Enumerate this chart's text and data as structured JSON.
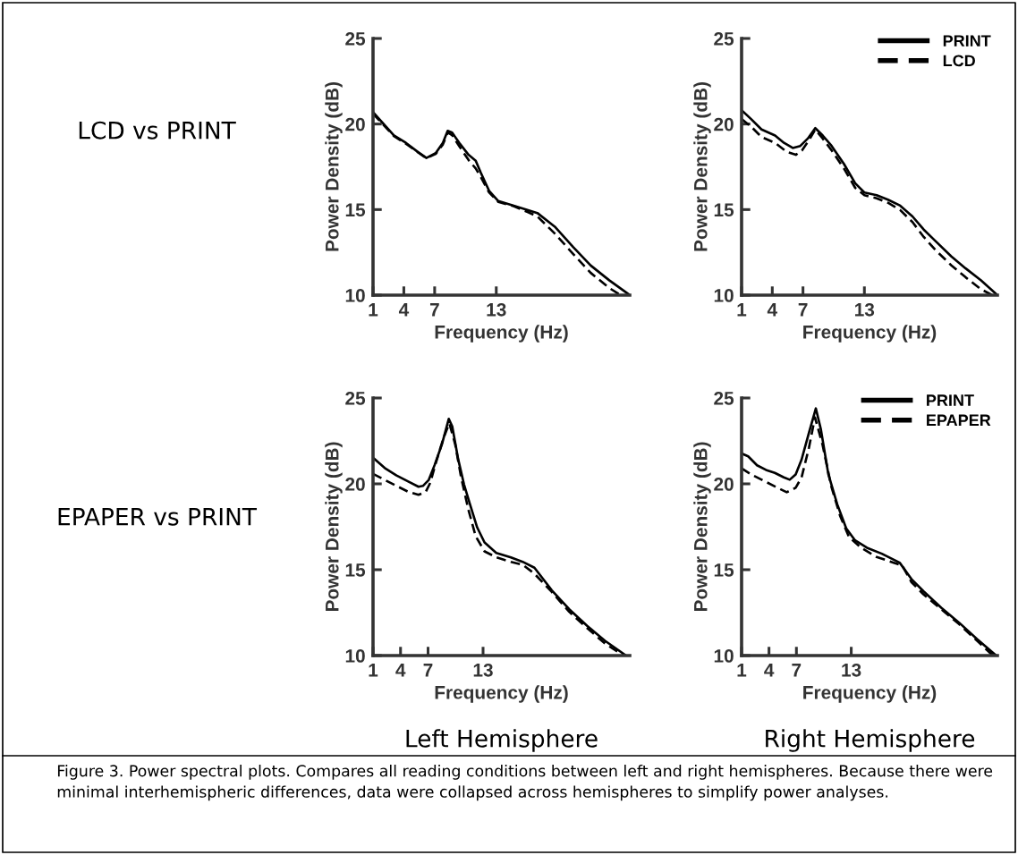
{
  "chart_data": [
    {
      "type": "line",
      "title": "LCD vs PRINT",
      "xlabel": "Frequency (Hz)",
      "ylabel": "Power Density (dB)",
      "xlim": [
        1,
        26
      ],
      "xticks": [
        1,
        4,
        7,
        13
      ],
      "ylim": [
        10,
        25
      ],
      "yticks": [
        10,
        15,
        20,
        25
      ],
      "legend": false,
      "series": [
        {
          "color": "#000000",
          "line_style": "solid",
          "x": [
            1,
            3.03,
            4.2,
            5.36,
            6.2,
            7.1,
            7.8,
            8.27,
            8.7,
            9.4,
            10.3,
            11.0,
            11.5,
            12.3,
            13.2,
            14.7,
            16.1,
            17.0,
            18.7,
            20.5,
            22.2,
            24.0,
            26.0
          ],
          "values": [
            20.69,
            19.33,
            18.9,
            18.37,
            18.02,
            18.3,
            18.9,
            19.6,
            19.5,
            18.9,
            18.2,
            17.85,
            17.15,
            16.1,
            15.5,
            15.23,
            14.97,
            14.8,
            14.0,
            12.8,
            11.73,
            10.87,
            10
          ]
        },
        {
          "color": "#000000",
          "line_style": "dashed",
          "x": [
            1,
            3.03,
            4.2,
            5.36,
            6.2,
            7.1,
            7.8,
            8.27,
            8.7,
            9.4,
            10.3,
            11.0,
            11.5,
            12.3,
            13.2,
            14.7,
            16.1,
            17.0,
            18.7,
            20.5,
            22.2,
            24.0,
            25.1
          ],
          "values": [
            20.6,
            19.3,
            18.85,
            18.35,
            18.0,
            18.25,
            18.8,
            19.5,
            19.35,
            18.7,
            17.9,
            17.4,
            16.9,
            16.0,
            15.45,
            15.2,
            14.85,
            14.6,
            13.6,
            12.4,
            11.3,
            10.42,
            10
          ]
        }
      ]
    },
    {
      "type": "line",
      "xlabel": "Frequency (Hz)",
      "ylabel": "Power Density (dB)",
      "xlim": [
        1,
        26
      ],
      "xticks": [
        1,
        4,
        7,
        13
      ],
      "ylim": [
        10,
        25
      ],
      "yticks": [
        10,
        15,
        20,
        25
      ],
      "legend": "top right",
      "series": [
        {
          "name": "PRINT",
          "color": "#000000",
          "line_style": "solid",
          "x": [
            1,
            1.93,
            2.95,
            4.27,
            5.14,
            6.0,
            6.74,
            7.47,
            8.2,
            8.93,
            9.8,
            11.0,
            12.1,
            13.0,
            14.2,
            15.3,
            16.5,
            17.7,
            18.8,
            20.0,
            21.5,
            22.9,
            24.4,
            26.0
          ],
          "values": [
            20.81,
            20.29,
            19.68,
            19.33,
            18.9,
            18.6,
            18.72,
            19.15,
            19.76,
            19.33,
            18.72,
            17.67,
            16.54,
            16.0,
            15.84,
            15.58,
            15.23,
            14.6,
            13.83,
            13.13,
            12.26,
            11.56,
            10.86,
            10
          ]
        },
        {
          "name": "LCD",
          "color": "#000000",
          "line_style": "dashed",
          "x": [
            1,
            1.93,
            2.95,
            4.27,
            5.43,
            6.3,
            6.9,
            7.6,
            8.2,
            8.93,
            9.8,
            11.0,
            12.1,
            13.0,
            14.2,
            15.3,
            16.5,
            17.7,
            18.8,
            20.0,
            21.5,
            22.9,
            24.4,
            25.5
          ],
          "values": [
            20.29,
            19.85,
            19.24,
            18.9,
            18.37,
            18.2,
            18.46,
            19.07,
            19.68,
            19.15,
            18.46,
            17.4,
            16.27,
            15.84,
            15.66,
            15.4,
            14.97,
            14.27,
            13.4,
            12.6,
            11.74,
            11.04,
            10.34,
            10
          ]
        }
      ]
    },
    {
      "type": "line",
      "title": "EPAPER vs PRINT",
      "xlabel": "Frequency (Hz)",
      "ylabel": "Power Density (dB)",
      "xlim": [
        1,
        29
      ],
      "xticks": [
        1,
        4,
        7,
        13
      ],
      "ylim": [
        10,
        25
      ],
      "yticks": [
        10,
        15,
        20,
        25
      ],
      "legend": false,
      "annotations": [
        "Left Hemisphere"
      ],
      "series": [
        {
          "color": "#000000",
          "line_style": "solid",
          "x": [
            1,
            2.28,
            3.56,
            4.84,
            5.96,
            6.44,
            7.08,
            7.72,
            8.52,
            9.26,
            9.64,
            10.28,
            10.92,
            11.56,
            12.36,
            13.16,
            14.44,
            16.04,
            17.32,
            18.6,
            20.5,
            22.4,
            24.35,
            26.3,
            28.6
          ],
          "values": [
            21.53,
            20.92,
            20.49,
            20.14,
            19.83,
            19.88,
            20.23,
            21.1,
            22.31,
            23.79,
            23.35,
            21.45,
            19.97,
            18.84,
            17.46,
            16.59,
            15.98,
            15.72,
            15.46,
            15.12,
            13.8,
            12.7,
            11.73,
            10.86,
            10
          ]
        },
        {
          "color": "#000000",
          "line_style": "dashed",
          "x": [
            1,
            2.28,
            3.56,
            4.84,
            5.96,
            6.76,
            7.24,
            7.88,
            8.68,
            9.32,
            9.96,
            10.6,
            11.4,
            12.2,
            13.16,
            14.44,
            16.04,
            17.32,
            18.6,
            20.5,
            22.4,
            24.35,
            26.3,
            28.3
          ],
          "values": [
            20.58,
            20.23,
            19.88,
            19.54,
            19.36,
            19.54,
            20.06,
            21.27,
            22.66,
            23.53,
            22.31,
            20.4,
            18.5,
            16.94,
            16.07,
            15.72,
            15.46,
            15.29,
            14.77,
            13.7,
            12.55,
            11.6,
            10.7,
            10
          ]
        }
      ]
    },
    {
      "type": "line",
      "xlabel": "Frequency (Hz)",
      "ylabel": "Power Density (dB)",
      "xlim": [
        1,
        29
      ],
      "xticks": [
        1,
        4,
        7,
        13
      ],
      "ylim": [
        10,
        25
      ],
      "yticks": [
        10,
        15,
        20,
        25
      ],
      "legend": "top right",
      "annotations": [
        "Right Hemisphere",
        "Figure 3. Power spectral plots. Compares all reading conditions between left and right hemispheres. Because there were minimal interhemispheric differences, data were collapsed across hemispheres to simplify power analyses."
      ],
      "series": [
        {
          "name": "PRINT",
          "color": "#000000",
          "line_style": "solid",
          "x": [
            1,
            1.72,
            2.69,
            3.67,
            4.64,
            5.62,
            6.27,
            6.92,
            7.57,
            8.38,
            9.13,
            9.68,
            10.5,
            11.47,
            12.45,
            13.42,
            14.72,
            16.35,
            18.3,
            19.6,
            20.9,
            22.85,
            24.8,
            26.76,
            28.87
          ],
          "values": [
            21.77,
            21.6,
            21.08,
            20.81,
            20.64,
            20.38,
            20.24,
            20.55,
            21.42,
            22.99,
            24.39,
            23.17,
            20.55,
            18.81,
            17.41,
            16.71,
            16.28,
            15.93,
            15.41,
            14.45,
            13.75,
            12.79,
            11.92,
            10.96,
            10
          ]
        },
        {
          "name": "EPAPER",
          "color": "#000000",
          "line_style": "dashed",
          "x": [
            1,
            2.04,
            3.34,
            4.64,
            5.94,
            6.92,
            7.57,
            8.38,
            9.03,
            9.85,
            10.82,
            11.8,
            12.77,
            14.07,
            15.7,
            17.65,
            18.6,
            19.6,
            20.9,
            22.85,
            24.8,
            26.76,
            28.5
          ],
          "values": [
            20.9,
            20.55,
            20.2,
            19.85,
            19.51,
            19.77,
            20.38,
            22.12,
            23.87,
            22.3,
            19.85,
            18.11,
            16.89,
            16.28,
            15.76,
            15.41,
            15.23,
            14.27,
            13.57,
            12.7,
            11.83,
            10.87,
            10
          ]
        }
      ]
    }
  ]
}
